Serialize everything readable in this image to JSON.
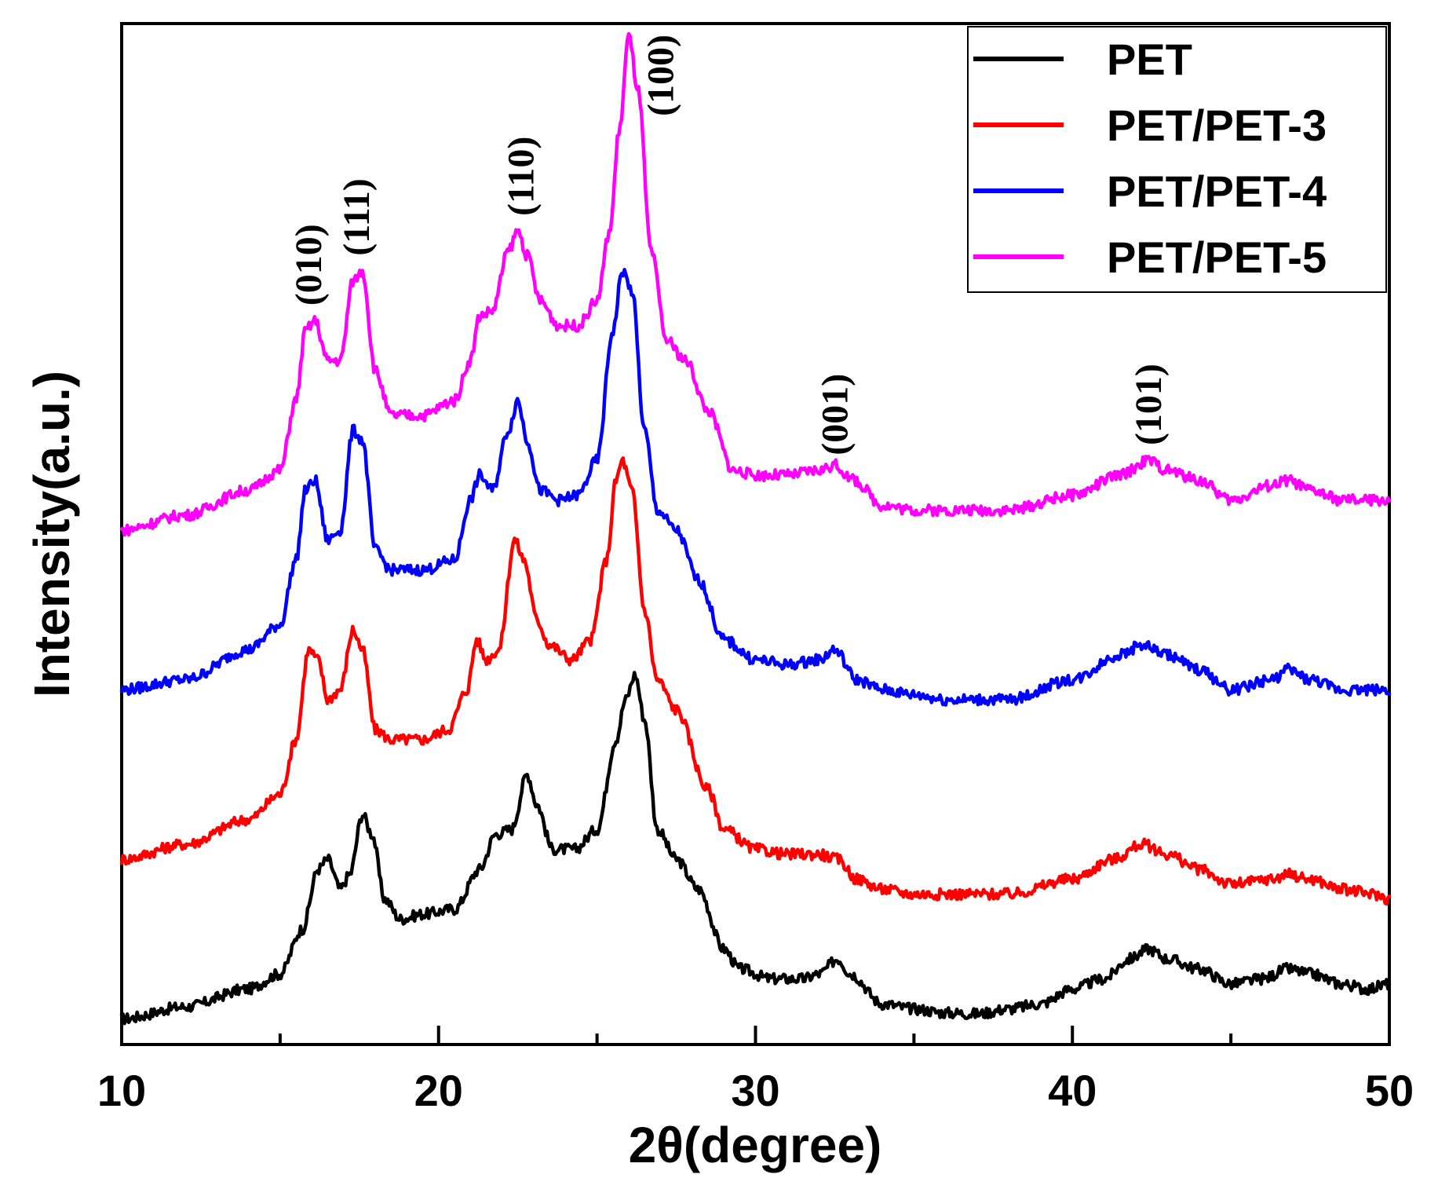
{
  "chart_data": {
    "type": "line",
    "title": "",
    "xlabel": "2θ(degree)",
    "ylabel": "Intensity(a.u.)",
    "xlim": [
      10,
      50
    ],
    "ylim": [
      0,
      100
    ],
    "x_ticks": [
      10,
      20,
      30,
      40,
      50
    ],
    "x_tick_labels": [
      "10",
      "20",
      "30",
      "40",
      "50"
    ],
    "y_ticks_labeled": false,
    "legend_position": "top-right",
    "series": [
      {
        "name": "PET",
        "color": "#000000",
        "points": [
          [
            10,
            1
          ],
          [
            12,
            2.2
          ],
          [
            14,
            4
          ],
          [
            15,
            5.5
          ],
          [
            15.7,
            10
          ],
          [
            16.2,
            16
          ],
          [
            16.5,
            17
          ],
          [
            16.9,
            14
          ],
          [
            17.2,
            15.5
          ],
          [
            17.6,
            21.5
          ],
          [
            17.9,
            19.5
          ],
          [
            18.3,
            13
          ],
          [
            18.8,
            11
          ],
          [
            19.5,
            11.5
          ],
          [
            20.5,
            12
          ],
          [
            21.3,
            16
          ],
          [
            21.8,
            19.5
          ],
          [
            22.3,
            20
          ],
          [
            22.8,
            25.5
          ],
          [
            23.1,
            22.5
          ],
          [
            23.6,
            18
          ],
          [
            24.3,
            18
          ],
          [
            25.0,
            20
          ],
          [
            25.6,
            29
          ],
          [
            25.9,
            33
          ],
          [
            26.2,
            35.5
          ],
          [
            26.5,
            31
          ],
          [
            26.9,
            20
          ],
          [
            27.5,
            17
          ],
          [
            28.2,
            14
          ],
          [
            29.0,
            8
          ],
          [
            29.5,
            6
          ],
          [
            30.5,
            5
          ],
          [
            31.5,
            5
          ],
          [
            32.0,
            5.5
          ],
          [
            32.6,
            7
          ],
          [
            33.0,
            5.5
          ],
          [
            34,
            2.5
          ],
          [
            35,
            2
          ],
          [
            36,
            1.6
          ],
          [
            37,
            1.5
          ],
          [
            38,
            2
          ],
          [
            39,
            2.5
          ],
          [
            40,
            4
          ],
          [
            41,
            5
          ],
          [
            41.8,
            7
          ],
          [
            42.4,
            8
          ],
          [
            43,
            7
          ],
          [
            44,
            6
          ],
          [
            45,
            4.5
          ],
          [
            46,
            5
          ],
          [
            46.8,
            6
          ],
          [
            47.5,
            5.5
          ],
          [
            48.5,
            4.5
          ],
          [
            49.3,
            4
          ],
          [
            50,
            4.5
          ]
        ]
      },
      {
        "name": "PET/PET-3",
        "color": "#ff0000",
        "points": [
          [
            10,
            17
          ],
          [
            12,
            18.5
          ],
          [
            14,
            21
          ],
          [
            15,
            23.5
          ],
          [
            15.5,
            29
          ],
          [
            15.9,
            38
          ],
          [
            16.2,
            37
          ],
          [
            16.5,
            33
          ],
          [
            16.9,
            34
          ],
          [
            17.3,
            40
          ],
          [
            17.6,
            38
          ],
          [
            18.0,
            30
          ],
          [
            18.5,
            29
          ],
          [
            19.5,
            29
          ],
          [
            20.3,
            30
          ],
          [
            20.9,
            34
          ],
          [
            21.2,
            39
          ],
          [
            21.5,
            37
          ],
          [
            21.9,
            38
          ],
          [
            22.4,
            49
          ],
          [
            22.7,
            47
          ],
          [
            23.1,
            41
          ],
          [
            23.5,
            38.5
          ],
          [
            24.2,
            37
          ],
          [
            24.8,
            39
          ],
          [
            25.3,
            47
          ],
          [
            25.6,
            55
          ],
          [
            25.8,
            57
          ],
          [
            26.1,
            54
          ],
          [
            26.5,
            42
          ],
          [
            26.9,
            35
          ],
          [
            27.5,
            32
          ],
          [
            28.5,
            24
          ],
          [
            29.0,
            20
          ],
          [
            30,
            18
          ],
          [
            31,
            17.5
          ],
          [
            32,
            17.5
          ],
          [
            32.6,
            17
          ],
          [
            33.2,
            15
          ],
          [
            34,
            14
          ],
          [
            35,
            13.5
          ],
          [
            36,
            13.5
          ],
          [
            38,
            13.5
          ],
          [
            40,
            15
          ],
          [
            41.3,
            17
          ],
          [
            42.2,
            18.5
          ],
          [
            43,
            17.5
          ],
          [
            44,
            16
          ],
          [
            45,
            14.5
          ],
          [
            46.3,
            15
          ],
          [
            46.8,
            15.5
          ],
          [
            47.5,
            15
          ],
          [
            48.5,
            14
          ],
          [
            49.5,
            13.5
          ],
          [
            50,
            13
          ]
        ]
      },
      {
        "name": "PET/PET-4",
        "color": "#0000ff",
        "points": [
          [
            10,
            34
          ],
          [
            12,
            35
          ],
          [
            14,
            38
          ],
          [
            15,
            40.5
          ],
          [
            15.5,
            47
          ],
          [
            15.8,
            54
          ],
          [
            16.1,
            55
          ],
          [
            16.5,
            49
          ],
          [
            16.9,
            50
          ],
          [
            17.3,
            60
          ],
          [
            17.6,
            59
          ],
          [
            18.0,
            48
          ],
          [
            18.5,
            46
          ],
          [
            19.5,
            46
          ],
          [
            20.5,
            47
          ],
          [
            21.0,
            53
          ],
          [
            21.3,
            55.5
          ],
          [
            21.7,
            54
          ],
          [
            22.2,
            60
          ],
          [
            22.5,
            63
          ],
          [
            22.8,
            59
          ],
          [
            23.2,
            54
          ],
          [
            23.8,
            53
          ],
          [
            24.4,
            53.5
          ],
          [
            25.0,
            57
          ],
          [
            25.5,
            70
          ],
          [
            25.8,
            76
          ],
          [
            26.1,
            74
          ],
          [
            26.5,
            60
          ],
          [
            26.9,
            52
          ],
          [
            27.5,
            50
          ],
          [
            28.2,
            45
          ],
          [
            29.0,
            39
          ],
          [
            30,
            37
          ],
          [
            31,
            36.5
          ],
          [
            32,
            37
          ],
          [
            32.5,
            38
          ],
          [
            33.2,
            35
          ],
          [
            34,
            34
          ],
          [
            35,
            33.5
          ],
          [
            36,
            33
          ],
          [
            38,
            33
          ],
          [
            40,
            35
          ],
          [
            41.5,
            37.5
          ],
          [
            42.2,
            38.5
          ],
          [
            43,
            37.5
          ],
          [
            44,
            36
          ],
          [
            45,
            34
          ],
          [
            46.3,
            35
          ],
          [
            46.8,
            36
          ],
          [
            47.5,
            35
          ],
          [
            48.5,
            34
          ],
          [
            49.5,
            34
          ],
          [
            50,
            34
          ]
        ]
      },
      {
        "name": "PET/PET-5",
        "color": "#ff00ff",
        "points": [
          [
            10,
            50
          ],
          [
            12,
            51.5
          ],
          [
            14,
            54
          ],
          [
            15,
            56
          ],
          [
            15.5,
            63
          ],
          [
            15.8,
            70
          ],
          [
            16.1,
            71
          ],
          [
            16.5,
            67
          ],
          [
            16.9,
            67
          ],
          [
            17.3,
            75
          ],
          [
            17.6,
            76
          ],
          [
            18.0,
            66
          ],
          [
            18.5,
            61.5
          ],
          [
            19.5,
            61.5
          ],
          [
            20.5,
            63
          ],
          [
            21.0,
            67
          ],
          [
            21.3,
            71.5
          ],
          [
            21.7,
            72
          ],
          [
            22.2,
            78
          ],
          [
            22.5,
            80
          ],
          [
            22.8,
            77.5
          ],
          [
            23.2,
            73
          ],
          [
            23.8,
            70.5
          ],
          [
            24.4,
            70.5
          ],
          [
            25.0,
            73
          ],
          [
            25.4,
            80
          ],
          [
            25.7,
            90
          ],
          [
            26.0,
            99.5
          ],
          [
            26.3,
            94
          ],
          [
            26.7,
            78
          ],
          [
            27.2,
            69
          ],
          [
            27.8,
            67
          ],
          [
            28.5,
            62
          ],
          [
            29.3,
            56
          ],
          [
            30,
            55.5
          ],
          [
            31,
            55.5
          ],
          [
            32,
            56
          ],
          [
            32.5,
            56.5
          ],
          [
            33.1,
            55
          ],
          [
            34,
            52.5
          ],
          [
            35,
            52
          ],
          [
            36,
            52
          ],
          [
            38,
            52
          ],
          [
            40,
            53.5
          ],
          [
            41.5,
            55.5
          ],
          [
            42.4,
            57
          ],
          [
            43,
            56
          ],
          [
            44,
            55
          ],
          [
            45,
            53
          ],
          [
            46.3,
            54.5
          ],
          [
            46.8,
            55
          ],
          [
            47.5,
            54
          ],
          [
            48.5,
            53
          ],
          [
            49.5,
            53
          ],
          [
            50,
            53
          ]
        ]
      }
    ],
    "annotations": [
      {
        "text": "(010)",
        "x": 15.9,
        "y": 72.5
      },
      {
        "text": "(111)",
        "x": 17.4,
        "y": 77.5
      },
      {
        "text": "(110)",
        "x": 22.6,
        "y": 81.5
      },
      {
        "text": "(100)",
        "x": 27.0,
        "y": 91.5
      },
      {
        "text": "(001)",
        "x": 32.5,
        "y": 57.5
      },
      {
        "text": "(101)",
        "x": 42.4,
        "y": 58.5
      }
    ]
  }
}
